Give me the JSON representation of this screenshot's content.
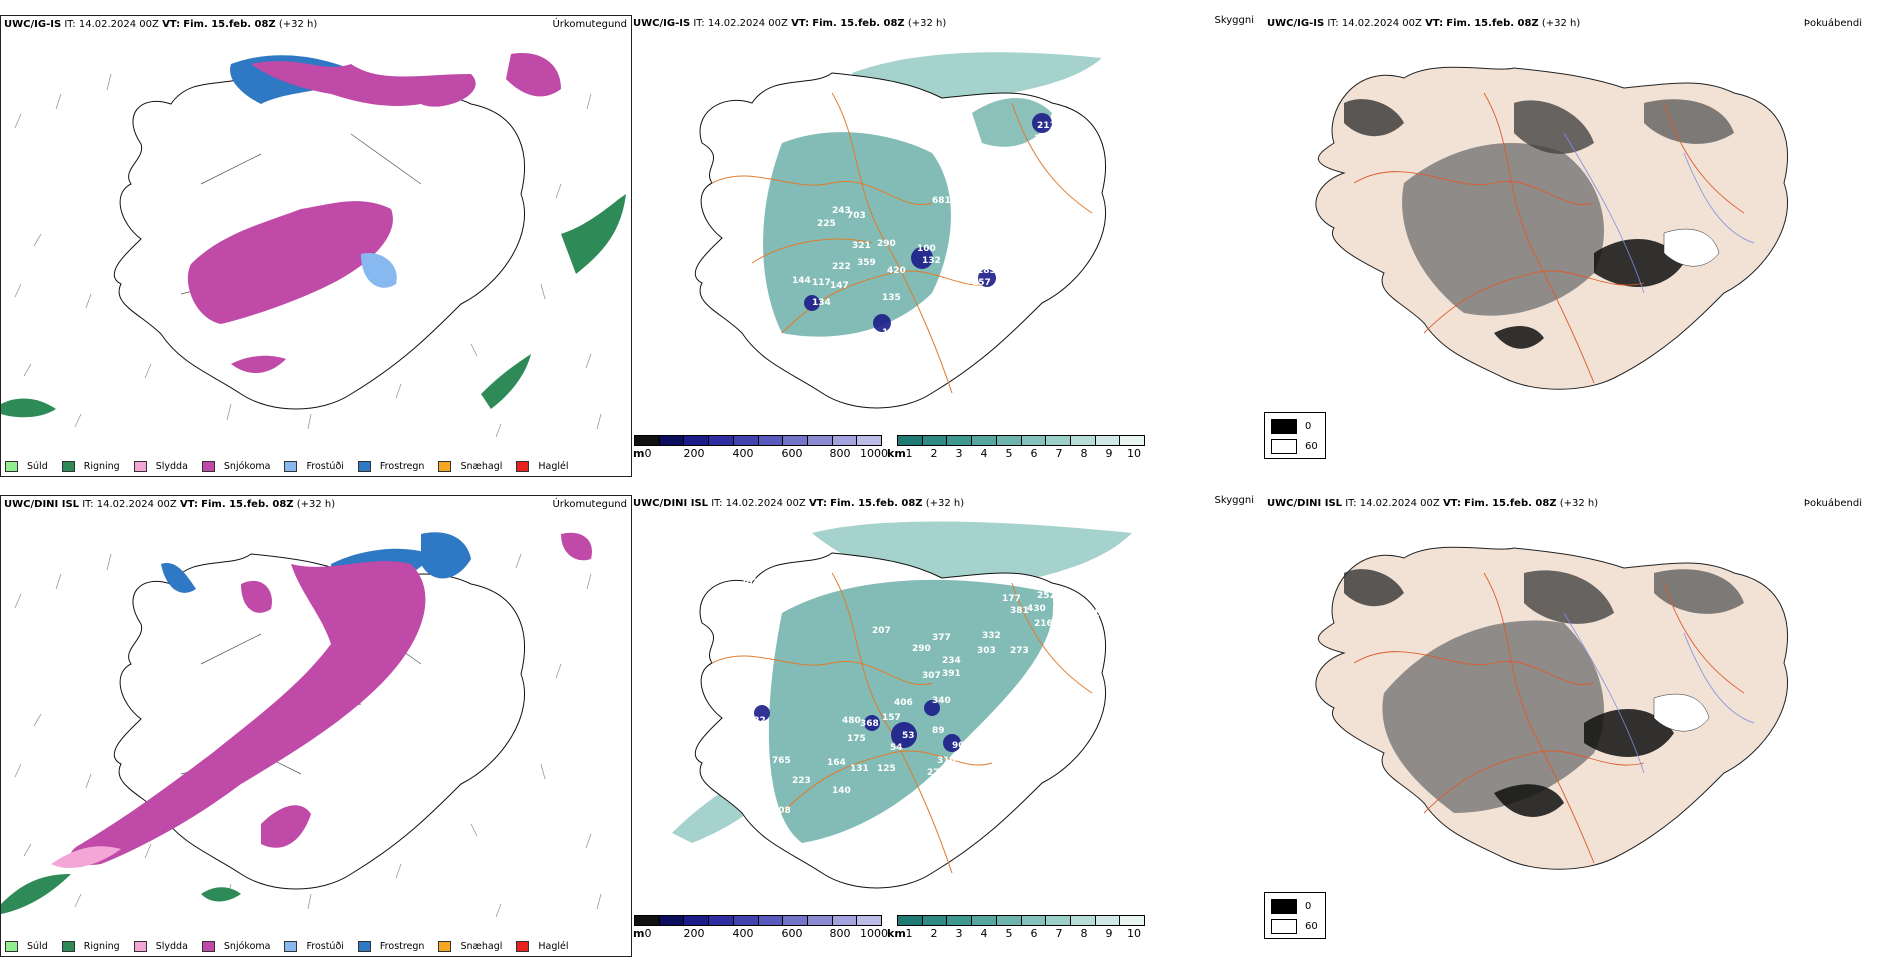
{
  "rows": [
    {
      "model": "UWC/IG-IS",
      "it_label": "IT:",
      "it_value": "14.02.2024 00Z",
      "vt_label": "VT:",
      "vt_value": "Fim. 15.feb. 08Z",
      "lead": "(+32 h)",
      "precip_title": "Úrkomutegund",
      "cloud_title": "Skyggni",
      "fog_title": "Þokuábendi",
      "cloud_values": [
        "211",
        "176",
        "243",
        "703",
        "225",
        "681",
        "314",
        "292",
        "321",
        "290",
        "100",
        "132",
        "222",
        "359",
        "420",
        "144",
        "113",
        "160",
        "117",
        "147",
        "185",
        "157",
        "135",
        "97",
        "134",
        "132",
        "227",
        "109"
      ]
    },
    {
      "model": "UWC/DINI ISL",
      "it_label": "IT:",
      "it_value": "14.02.2024 00Z",
      "vt_label": "VT:",
      "vt_value": "Fim. 15.feb. 08Z",
      "lead": "(+32 h)",
      "precip_title": "Úrkomutegund",
      "cloud_title": "Skyggni",
      "fog_title": "Þokuábendi",
      "cloud_values": [
        "202",
        "540",
        "252",
        "177",
        "381",
        "430",
        "558",
        "232",
        "113",
        "216",
        "190",
        "207",
        "332",
        "303",
        "273",
        "377",
        "290",
        "234",
        "307",
        "391",
        "406",
        "340",
        "157",
        "480",
        "368",
        "53",
        "54",
        "89",
        "90",
        "175",
        "310",
        "20",
        "765",
        "164",
        "131",
        "125",
        "270",
        "140",
        "108",
        "122",
        "223"
      ]
    }
  ],
  "precip_legend": [
    {
      "label": "Súld",
      "color": "#90ee90"
    },
    {
      "label": "Rigning",
      "color": "#2e8b57"
    },
    {
      "label": "Slydda",
      "color": "#f4a6d7"
    },
    {
      "label": "Snjókoma",
      "color": "#c04aa7"
    },
    {
      "label": "Frostúði",
      "color": "#87b9f0"
    },
    {
      "label": "Frostregn",
      "color": "#2f78c4"
    },
    {
      "label": "Snæhagl",
      "color": "#f5a623"
    },
    {
      "label": "Haglél",
      "color": "#e8211d"
    }
  ],
  "height_bar": {
    "unit": "m",
    "ticks": [
      "0",
      "200",
      "400",
      "600",
      "800",
      "1000"
    ],
    "colors": [
      "#111111",
      "#0d0d5e",
      "#1d1d8a",
      "#2e2ea0",
      "#4343b0",
      "#5a5abc",
      "#7373c8",
      "#8b8bd2",
      "#a3a3dd",
      "#bcbce6"
    ]
  },
  "vis_bar": {
    "unit": "km",
    "ticks": [
      "1",
      "2",
      "3",
      "4",
      "5",
      "6",
      "7",
      "8",
      "9",
      "10"
    ],
    "colors": [
      "#1f7a73",
      "#2e8a82",
      "#3f9890",
      "#55a69e",
      "#6cb4ac",
      "#84c2bb",
      "#9dcfc9",
      "#b6ddd8",
      "#cfe9e6",
      "#e8f5f3"
    ]
  },
  "fog_legend": [
    {
      "label": "0",
      "color": "#000000"
    },
    {
      "label": "60",
      "color": "#ffffff"
    }
  ]
}
